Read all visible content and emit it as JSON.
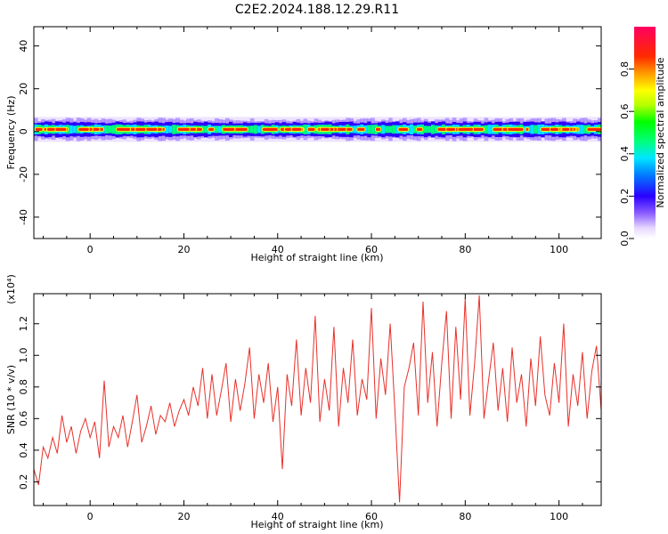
{
  "page": {
    "title": "C2E2.2024.188.12.29.R11"
  },
  "chart_data": [
    {
      "id": "spectrogram",
      "type": "heatmap",
      "xlabel": "Height of straight line (km)",
      "ylabel": "Frequency (Hz)",
      "xlim": [
        -12,
        109
      ],
      "ylim": [
        -50,
        49
      ],
      "xticks": [
        0,
        20,
        40,
        60,
        80,
        100
      ],
      "yticks": [
        -40,
        -20,
        0,
        20,
        40
      ],
      "band_center_hz": 1,
      "band_halfwidth_hz": 5,
      "colorbar": {
        "label": "Normalized spectral amplitude",
        "range": [
          0.0,
          1.0
        ],
        "ticks": [
          0.0,
          0.2,
          0.4,
          0.6,
          0.8
        ],
        "tick_labels": [
          "0.0",
          "0.2",
          "0.4",
          "0.6",
          "0.8"
        ]
      },
      "grid": false
    },
    {
      "id": "snr",
      "type": "line",
      "xlabel": "Height of straight line (km)",
      "ylabel": "SNR (10 * v/v)",
      "y_multiplier_label": "(x10⁴)",
      "xlim": [
        -12,
        109
      ],
      "ylim": [
        0.05,
        1.39
      ],
      "xticks": [
        0,
        20,
        40,
        60,
        80,
        100
      ],
      "yticks": [
        0.2,
        0.4,
        0.6,
        0.8,
        1.0,
        1.2
      ],
      "ytick_labels": [
        "0.2",
        "0.4",
        "0.6",
        "0.8",
        "1.0",
        "1.2"
      ],
      "line_color": "#e8302a",
      "grid": false,
      "series": [
        {
          "x": [
            -12,
            -11,
            -10,
            -9,
            -8,
            -7,
            -6,
            -5,
            -4,
            -3,
            -2,
            -1,
            0,
            1,
            2,
            3,
            4,
            5,
            6,
            7,
            8,
            9,
            10,
            11,
            12,
            13,
            14,
            15,
            16,
            17,
            18,
            19,
            20,
            21,
            22,
            23,
            24,
            25,
            26,
            27,
            28,
            29,
            30,
            31,
            32,
            33,
            34,
            35,
            36,
            37,
            38,
            39,
            40,
            41,
            42,
            43,
            44,
            45,
            46,
            47,
            48,
            49,
            50,
            51,
            52,
            53,
            54,
            55,
            56,
            57,
            58,
            59,
            60,
            61,
            62,
            63,
            64,
            65,
            66,
            67,
            68,
            69,
            70,
            71,
            72,
            73,
            74,
            75,
            76,
            77,
            78,
            79,
            80,
            81,
            82,
            83,
            84,
            85,
            86,
            87,
            88,
            89,
            90,
            91,
            92,
            93,
            94,
            95,
            96,
            97,
            98,
            99,
            100,
            101,
            102,
            103,
            104,
            105,
            106,
            107,
            108,
            109
          ],
          "values": [
            0.28,
            0.18,
            0.42,
            0.35,
            0.48,
            0.38,
            0.62,
            0.45,
            0.55,
            0.38,
            0.52,
            0.6,
            0.48,
            0.58,
            0.35,
            0.84,
            0.42,
            0.55,
            0.48,
            0.62,
            0.42,
            0.58,
            0.75,
            0.45,
            0.55,
            0.68,
            0.5,
            0.62,
            0.58,
            0.7,
            0.55,
            0.65,
            0.72,
            0.62,
            0.8,
            0.68,
            0.92,
            0.6,
            0.88,
            0.62,
            0.78,
            0.95,
            0.58,
            0.85,
            0.65,
            0.82,
            1.05,
            0.6,
            0.88,
            0.7,
            0.95,
            0.58,
            0.8,
            0.28,
            0.88,
            0.68,
            1.1,
            0.62,
            0.92,
            0.7,
            1.25,
            0.58,
            0.85,
            0.65,
            1.18,
            0.55,
            0.92,
            0.7,
            1.1,
            0.62,
            0.85,
            0.72,
            1.3,
            0.6,
            0.98,
            0.75,
            1.2,
            0.65,
            0.07,
            0.8,
            0.92,
            1.08,
            0.62,
            1.34,
            0.7,
            1.02,
            0.55,
            0.95,
            1.28,
            0.6,
            1.18,
            0.72,
            1.36,
            0.62,
            0.95,
            1.38,
            0.6,
            0.85,
            1.08,
            0.65,
            0.92,
            0.58,
            1.05,
            0.7,
            0.88,
            0.55,
            0.98,
            0.68,
            1.12,
            0.75,
            0.62,
            0.95,
            0.7,
            1.2,
            0.55,
            0.88,
            0.68,
            1.02,
            0.6,
            0.9,
            1.06,
            0.65
          ]
        }
      ]
    }
  ]
}
